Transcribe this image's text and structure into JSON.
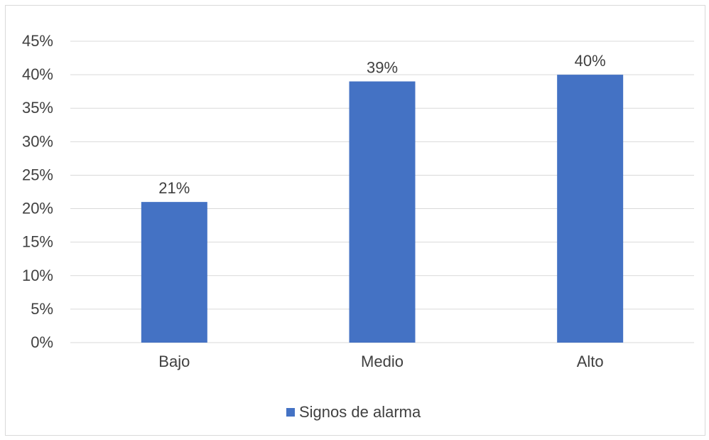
{
  "chart_data": {
    "type": "bar",
    "categories": [
      "Bajo",
      "Medio",
      "Alto"
    ],
    "series": [
      {
        "name": "Signos de alarma",
        "values": [
          21,
          39,
          40
        ],
        "color": "#4472C4"
      }
    ],
    "data_labels": [
      "21%",
      "39%",
      "40%"
    ],
    "y_ticks": [
      {
        "value": 0,
        "label": "0%"
      },
      {
        "value": 5,
        "label": "5%"
      },
      {
        "value": 10,
        "label": "10%"
      },
      {
        "value": 15,
        "label": "15%"
      },
      {
        "value": 20,
        "label": "20%"
      },
      {
        "value": 25,
        "label": "25%"
      },
      {
        "value": 30,
        "label": "30%"
      },
      {
        "value": 35,
        "label": "35%"
      },
      {
        "value": 40,
        "label": "40%"
      },
      {
        "value": 45,
        "label": "45%"
      }
    ],
    "ylim": [
      0,
      45
    ],
    "grid": true,
    "gridline_color": "#d9d9d9",
    "text_color": "#404040",
    "legend": {
      "position": "bottom",
      "label": "Signos de alarma"
    }
  }
}
